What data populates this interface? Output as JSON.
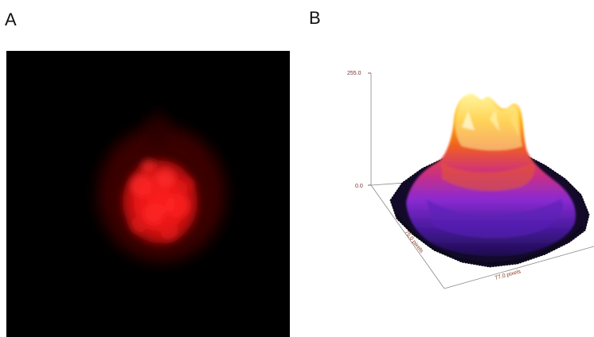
{
  "panels": {
    "a": {
      "label": "A"
    },
    "b": {
      "label": "B"
    }
  },
  "surface_plot": {
    "z_max_label": "255.0",
    "z_min_label": "0.0",
    "y_axis_label": "75.0 pixels",
    "x_axis_label": "77.0 pixels",
    "axis_label_color": "#8b3a1a",
    "tick_color": "#7a3030"
  },
  "colors": {
    "cell_red": "#ff1a1a",
    "background_black": "#000000"
  }
}
